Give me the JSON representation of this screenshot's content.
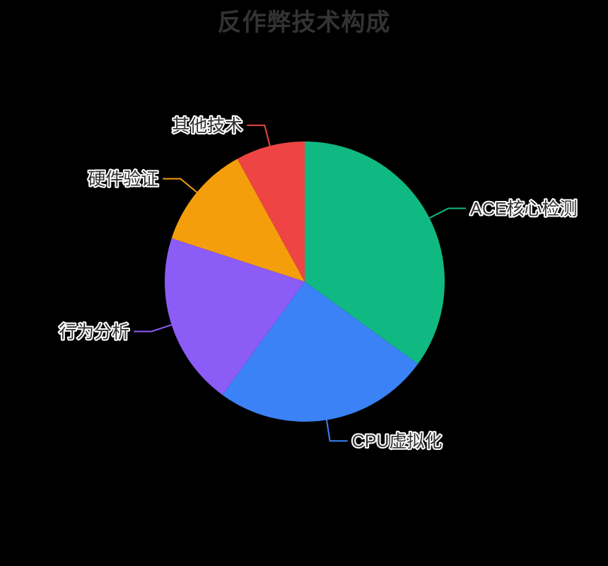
{
  "chart_data": {
    "type": "pie",
    "title": "反作弊技术构成",
    "title_color": "#333333",
    "background": "#000000",
    "label_color": "#333333",
    "label_outline_color": "#ffffff",
    "legend": false,
    "start_angle": "top",
    "direction": "clockwise",
    "center": [
      431,
      398
    ],
    "radius": 198,
    "label_line_radial_length": 30,
    "label_line_horizontal_length": 25,
    "slices": [
      {
        "name": "ACE核心检测",
        "value": 35,
        "color": "#10b981"
      },
      {
        "name": "CPU虚拟化",
        "value": 25,
        "color": "#3b82f6"
      },
      {
        "name": "行为分析",
        "value": 20,
        "color": "#8b5cf6"
      },
      {
        "name": "硬件验证",
        "value": 12,
        "color": "#f59e0b"
      },
      {
        "name": "其他技术",
        "value": 8,
        "color": "#ef4444"
      }
    ]
  }
}
